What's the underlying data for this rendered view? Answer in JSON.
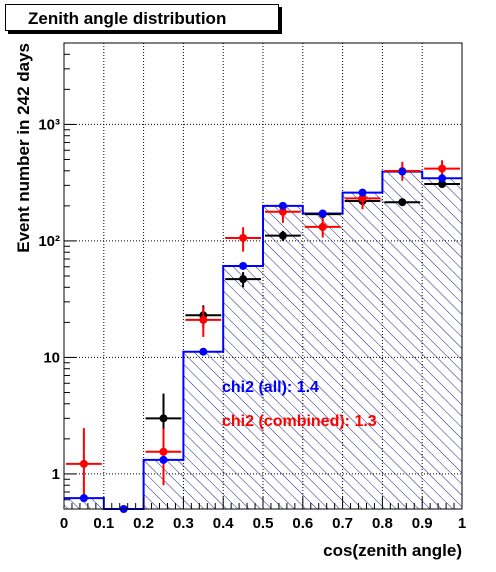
{
  "chart_data": {
    "type": "histogram",
    "title": "Zenith angle distribution",
    "xlabel": "cos(zenith angle)",
    "ylabel": "Event number in 242 days",
    "xlim": [
      0,
      1
    ],
    "ylim": [
      0.5,
      5000
    ],
    "y_scale": "log",
    "x_ticks": [
      "0",
      "0.1",
      "0.2",
      "0.3",
      "0.4",
      "0.5",
      "0.6",
      "0.7",
      "0.8",
      "0.9",
      "1"
    ],
    "y_ticks": [
      "1",
      "10",
      "10²",
      "10³"
    ],
    "grid": true,
    "bin_edges": [
      0,
      0.1,
      0.2,
      0.3,
      0.4,
      0.5,
      0.6,
      0.7,
      0.8,
      0.9,
      1.0
    ],
    "series": [
      {
        "color": "#0000ff",
        "style": "step-hist-with-points",
        "values": [
          0.62,
          0.5,
          1.32,
          11.2,
          61,
          200,
          172,
          260,
          393,
          345
        ],
        "errors_low": [
          0,
          0,
          0,
          0,
          0,
          0,
          0,
          0,
          0,
          0
        ],
        "errors_high": [
          0,
          0,
          0,
          0,
          0,
          0,
          0,
          0,
          0,
          0
        ]
      },
      {
        "color": "#000000",
        "style": "points-with-errors",
        "values": [
          null,
          null,
          3.0,
          23.0,
          47,
          111,
          170,
          220,
          215,
          308
        ],
        "errors_low": [
          0,
          0,
          1.5,
          5,
          7,
          11,
          13,
          15,
          15,
          18
        ],
        "errors_high": [
          0,
          0,
          1.9,
          5,
          7,
          11,
          13,
          15,
          15,
          18
        ]
      },
      {
        "color": "#ff0000",
        "style": "points-with-errors",
        "values": [
          1.22,
          null,
          1.55,
          21.0,
          106,
          178,
          132,
          232,
          398,
          418
        ],
        "errors_low": [
          0.6,
          0,
          0.75,
          6,
          25,
          35,
          25,
          45,
          70,
          75
        ],
        "errors_high": [
          1.25,
          0,
          0.9,
          6,
          25,
          35,
          25,
          45,
          80,
          75
        ]
      }
    ],
    "annotations": [
      {
        "text": "chi2 (all): 1.4",
        "color": "#0000ff"
      },
      {
        "text": "chi2 (combined): 1.3",
        "color": "#ff0000"
      }
    ]
  }
}
